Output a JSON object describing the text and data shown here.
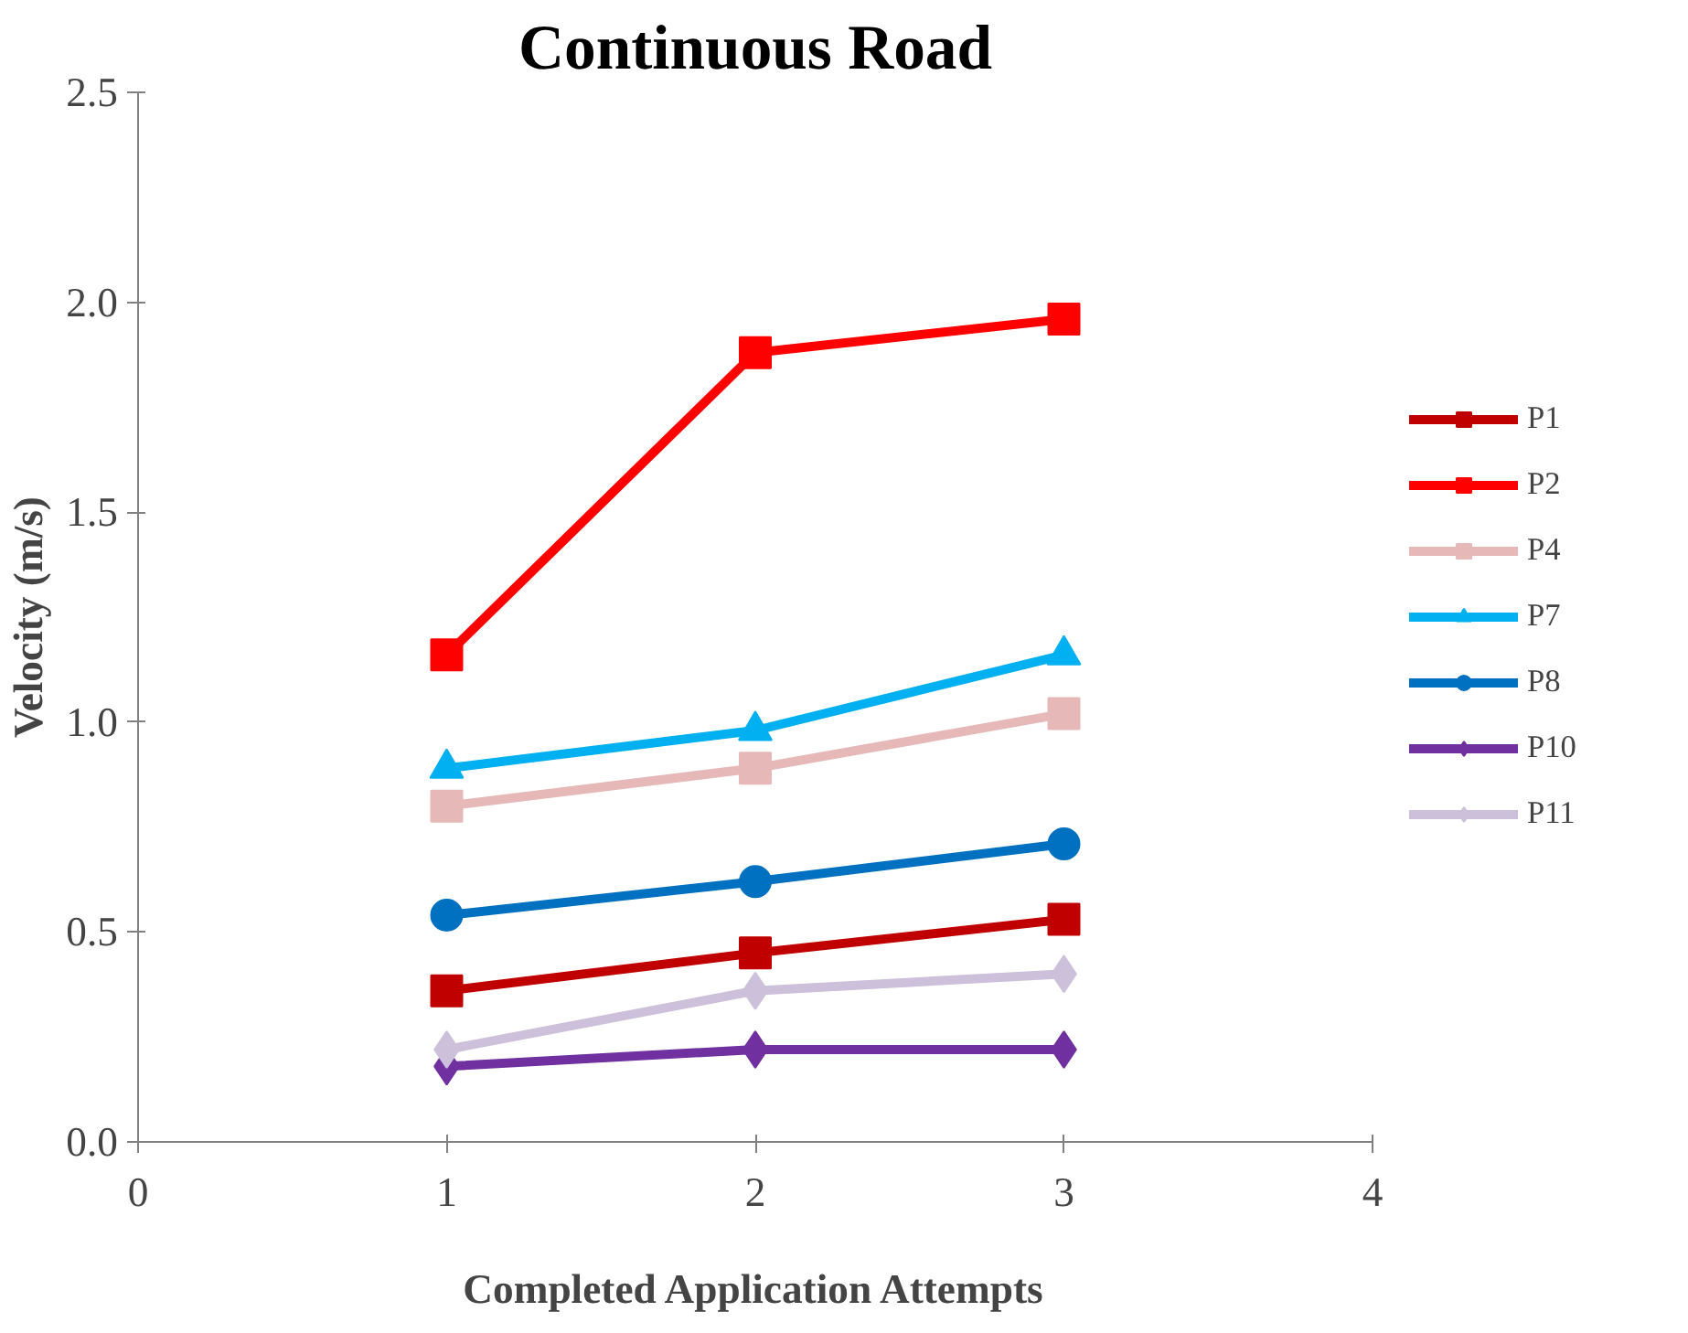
{
  "chart_data": {
    "type": "line",
    "title": "Continuous Road",
    "xlabel": "Completed Application Attempts",
    "ylabel": "Velocity (m/s)",
    "x": [
      1,
      2,
      3
    ],
    "series": [
      {
        "name": "P1",
        "color": "#c00000",
        "marker": "square",
        "values": [
          0.36,
          0.45,
          0.53
        ]
      },
      {
        "name": "P2",
        "color": "#ff0000",
        "marker": "square",
        "values": [
          1.16,
          1.88,
          1.96
        ]
      },
      {
        "name": "P4",
        "color": "#e6b9b8",
        "marker": "square",
        "values": [
          0.8,
          0.89,
          1.02
        ]
      },
      {
        "name": "P7",
        "color": "#00b0f0",
        "marker": "triangle",
        "values": [
          0.89,
          0.98,
          1.16
        ]
      },
      {
        "name": "P8",
        "color": "#0070c0",
        "marker": "circle",
        "values": [
          0.54,
          0.62,
          0.71
        ]
      },
      {
        "name": "P10",
        "color": "#7030a0",
        "marker": "diamond",
        "values": [
          0.18,
          0.22,
          0.22
        ]
      },
      {
        "name": "P11",
        "color": "#ccc0da",
        "marker": "diamond",
        "values": [
          0.22,
          0.36,
          0.4
        ]
      }
    ],
    "xlim": [
      0,
      4
    ],
    "xticks": [
      0,
      1,
      2,
      3,
      4
    ],
    "ylim": [
      0,
      2.5
    ],
    "yticks": [
      {
        "value": 0,
        "label": "0.0"
      },
      {
        "value": 0.5,
        "label": "0.5"
      },
      {
        "value": 1,
        "label": "1.0"
      },
      {
        "value": 1.5,
        "label": "1.5"
      },
      {
        "value": 2,
        "label": "2.0"
      },
      {
        "value": 2.5,
        "label": "2.5"
      }
    ],
    "grid": false,
    "legend": "right",
    "line_style": "solid"
  }
}
